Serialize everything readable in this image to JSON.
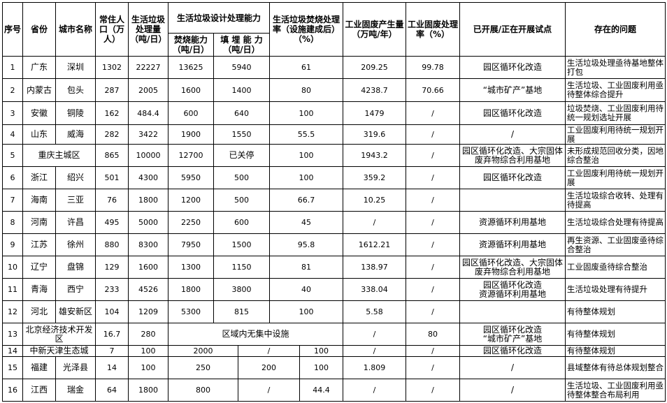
{
  "headers": {
    "no": "序号",
    "province": "省份",
    "city": "城市名称",
    "population": "常住人口（万人）",
    "msw": "生活垃圾处理量（吨/日）",
    "capacity": "生活垃圾设计处理能力",
    "incineration": "焚烧能力（吨/日）",
    "landfill": "填 埋 能 力（吨/日）",
    "incin_rate": "生活垃圾焚烧处理率（设施建成后）（%）",
    "ind_waste": "工业固废产生量（万吨/年）",
    "ind_rate": "工业固废处理率（%）",
    "pilot": "已开展/正在开展试点",
    "issues": "存在的问题"
  },
  "rows": [
    {
      "no": "1",
      "province": "广东",
      "city": "深圳",
      "population": "1302",
      "msw": "22227",
      "incineration": "13625",
      "landfill": "5940",
      "incin_rate": "61",
      "ind_waste": "209.25",
      "ind_rate": "99.78",
      "pilot": "园区循环化改造",
      "issues": "生活垃圾处理亟待基地整体打包"
    },
    {
      "no": "2",
      "province": "内蒙古",
      "city": "包头",
      "population": "287",
      "msw": "2005",
      "incineration": "1600",
      "landfill": "1400",
      "incin_rate": "80",
      "ind_waste": "4238.7",
      "ind_rate": "70.66",
      "pilot": "“城市矿产”基地",
      "issues": "生活垃圾、工业固废利用亟待整体综合提升"
    },
    {
      "no": "3",
      "province": "安徽",
      "city": "铜陵",
      "population": "162",
      "msw": "484.4",
      "incineration": "600",
      "landfill": "640",
      "incin_rate": "100",
      "ind_waste": "1479",
      "ind_rate": "/",
      "pilot": "园区循环化改造",
      "issues": "垃圾焚烧、工业固废利用待统一规划选址开展"
    },
    {
      "no": "4",
      "province": "山东",
      "city": "威海",
      "population": "282",
      "msw": "3422",
      "incineration": "1900",
      "landfill": "1550",
      "incin_rate": "55.5",
      "ind_waste": "319.6",
      "ind_rate": "/",
      "pilot": "/",
      "issues": "工业固废利用待统一规划开展"
    },
    {
      "no": "5",
      "region": "重庆主城区",
      "population": "865",
      "msw": "10000",
      "incineration": "12700",
      "landfill": "已关停",
      "incin_rate": "100",
      "ind_waste": "1943.2",
      "ind_rate": "/",
      "pilot": "园区循环化改造、大宗固体废弃物综合利用基地",
      "issues": "未形成规范回收分类，因地综合整治"
    },
    {
      "no": "6",
      "province": "浙江",
      "city": "绍兴",
      "population": "501",
      "msw": "4300",
      "incineration": "5950",
      "landfill": "500",
      "incin_rate": "100",
      "ind_waste": "359.2",
      "ind_rate": "/",
      "pilot": "园区循环化改造",
      "issues": "工业固废利用待统一规划开展"
    },
    {
      "no": "7",
      "province": "海南",
      "city": "三亚",
      "population": "76",
      "msw": "1800",
      "incineration": "1200",
      "landfill": "500",
      "incin_rate": "66.7",
      "ind_waste": "10.25",
      "ind_rate": "/",
      "pilot": "",
      "issues": "生活垃圾综合收转、处理有待提高"
    },
    {
      "no": "8",
      "province": "河南",
      "city": "许昌",
      "population": "495",
      "msw": "5000",
      "incineration": "2250",
      "landfill": "600",
      "incin_rate": "45",
      "ind_waste": "/",
      "ind_rate": "/",
      "pilot": "资源循环利用基地",
      "issues": "生活垃圾综合处理有待提高"
    },
    {
      "no": "9",
      "province": "江苏",
      "city": "徐州",
      "population": "880",
      "msw": "8300",
      "incineration": "7950",
      "landfill": "1500",
      "incin_rate": "95.8",
      "ind_waste": "1612.21",
      "ind_rate": "/",
      "pilot": "资源循环利用基地",
      "issues": "再生资源、工业固废亟待综合整治"
    },
    {
      "no": "10",
      "province": "辽宁",
      "city": "盘锦",
      "population": "129",
      "msw": "1600",
      "incineration": "1300",
      "landfill": "1150",
      "incin_rate": "81",
      "ind_waste": "138.97",
      "ind_rate": "/",
      "pilot": "园区循环化改造、大宗固体废弃物综合利用基地",
      "issues": "工业固废亟待综合整治"
    },
    {
      "no": "11",
      "province": "青海",
      "city": "西宁",
      "population": "233",
      "msw": "4526",
      "incineration": "1800",
      "landfill": "3800",
      "incin_rate": "40",
      "ind_waste": "338.04",
      "ind_rate": "/",
      "pilot": "园区循环化改造\n资源循环利用基地",
      "issues": "生活垃圾处理有待提升"
    },
    {
      "no": "12",
      "province": "河北",
      "city": "雄安新区",
      "population": "104",
      "msw": "1209",
      "incineration": "5300",
      "landfill": "815",
      "incin_rate": "100",
      "ind_waste": "5.58",
      "ind_rate": "/",
      "pilot": "",
      "issues": "有待整体规划"
    },
    {
      "no": "13",
      "region": "北京经济技术开发区",
      "population": "16.7",
      "msw": "280",
      "capacity_note": "区域内无集中设施",
      "ind_waste": "/",
      "ind_rate": "80",
      "pilot": "园区循环化改造\n“城市矿产”基地",
      "issues": "有待整体规划"
    },
    {
      "no": "14",
      "region": "中新天津生态城",
      "population": "7",
      "msw": "100",
      "incineration": "2000",
      "landfill": "/",
      "incin_rate": "100",
      "ind_waste": "/",
      "ind_rate": "/",
      "pilot": "园区循环化改造",
      "issues": "有待整体规划"
    },
    {
      "no": "15",
      "province": "福建",
      "city": "光泽县",
      "population": "14",
      "msw": "100",
      "incineration": "250",
      "landfill": "200",
      "incin_rate": "100",
      "ind_waste": "1.809",
      "ind_rate": "/",
      "pilot": "/",
      "issues": "县域整体有待总体规划整合"
    },
    {
      "no": "16",
      "province": "江西",
      "city": "瑞金",
      "population": "64",
      "msw": "1800",
      "incineration": "800",
      "landfill": "/",
      "incin_rate": "44.4",
      "ind_waste": "/",
      "ind_rate": "/",
      "pilot": "/",
      "issues": "生活垃圾、工业固废利用亟待整体整合布局利用"
    }
  ]
}
